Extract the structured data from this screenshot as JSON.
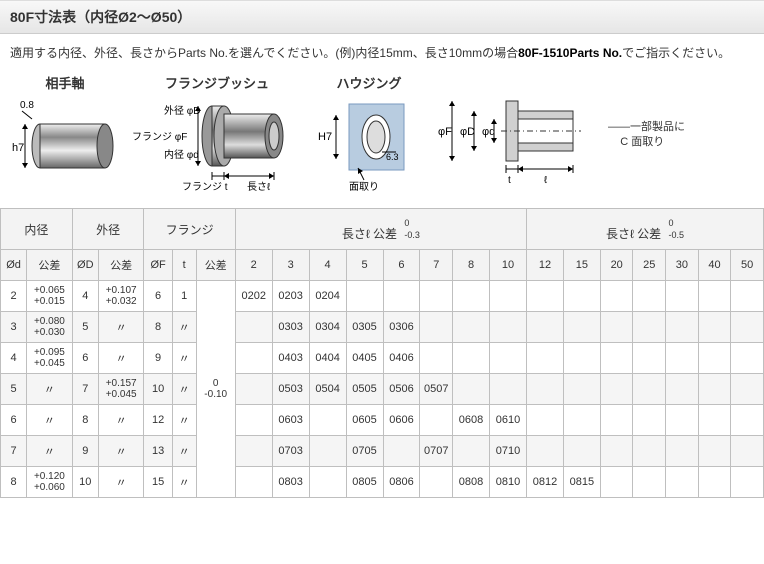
{
  "title": "80F寸法表（内径Ø2～Ø50）",
  "instruction_prefix": "適用する内径、外径、長さからParts No.を選んでください。(例)内径15mm、長さ10mmの場合",
  "instruction_bold": "80F-1510Parts No.",
  "instruction_suffix": "でご指示ください。",
  "diagram_labels": {
    "shaft": "相手軸",
    "bush": "フランジブッシュ",
    "housing": "ハウジング"
  },
  "diagram_annot": {
    "shaft_top": "0.8",
    "shaft_left": "h7",
    "bush_flangeF": "フランジ φF",
    "bush_outD": "外径 φD",
    "bush_inD": "内径 φd",
    "bush_flanget": "フランジ t",
    "bush_len": "長さℓ",
    "housing_H7": "H7",
    "housing_63": "6.3",
    "housing_chamfer": "面取り",
    "right_phiF": "φF",
    "right_phiD": "φD",
    "right_phid": "φd",
    "right_t": "t",
    "right_l": "ℓ"
  },
  "side_note_line1": "一部製品に",
  "side_note_line2": "C 面取り",
  "headers": {
    "naikei": "内径",
    "gaikei": "外径",
    "flange": "フランジ",
    "len1": "長さℓ 公差",
    "len1_tol_top": "0",
    "len1_tol_bot": "-0.3",
    "len2": "長さℓ 公差",
    "len2_tol_top": "0",
    "len2_tol_bot": "-0.5",
    "phid": "Ød",
    "phiD": "ØD",
    "phiF": "ØF",
    "kousa": "公差",
    "t": "t"
  },
  "len_cols1": [
    "2",
    "3",
    "4",
    "5",
    "6",
    "7",
    "8",
    "10"
  ],
  "len_cols2": [
    "12",
    "15",
    "20",
    "25",
    "30",
    "40",
    "50"
  ],
  "flange_tol_top": "0",
  "flange_tol_bot": "-0.10",
  "rows": [
    {
      "phid": "2",
      "tol_d": "+0.065\n+0.015",
      "phiD": "4",
      "tol_D": "+0.107\n+0.032",
      "phiF": "6",
      "t": "1",
      "cells1": [
        "0202",
        "0203",
        "0204",
        "",
        "",
        "",
        "",
        ""
      ],
      "cells2": [
        "",
        "",
        "",
        "",
        "",
        "",
        ""
      ]
    },
    {
      "phid": "3",
      "tol_d": "+0.080\n+0.030",
      "phiD": "5",
      "tol_D": "〃",
      "phiF": "8",
      "t": "〃",
      "cells1": [
        "",
        "0303",
        "0304",
        "0305",
        "0306",
        "",
        "",
        ""
      ],
      "cells2": [
        "",
        "",
        "",
        "",
        "",
        "",
        ""
      ]
    },
    {
      "phid": "4",
      "tol_d": "+0.095\n+0.045",
      "phiD": "6",
      "tol_D": "〃",
      "phiF": "9",
      "t": "〃",
      "cells1": [
        "",
        "0403",
        "0404",
        "0405",
        "0406",
        "",
        "",
        ""
      ],
      "cells2": [
        "",
        "",
        "",
        "",
        "",
        "",
        ""
      ]
    },
    {
      "phid": "5",
      "tol_d": "〃",
      "phiD": "7",
      "tol_D": "+0.157\n+0.045",
      "phiF": "10",
      "t": "〃",
      "cells1": [
        "",
        "0503",
        "0504",
        "0505",
        "0506",
        "0507",
        "",
        ""
      ],
      "cells2": [
        "",
        "",
        "",
        "",
        "",
        "",
        ""
      ]
    },
    {
      "phid": "6",
      "tol_d": "〃",
      "phiD": "8",
      "tol_D": "〃",
      "phiF": "12",
      "t": "〃",
      "cells1": [
        "",
        "0603",
        "",
        "0605",
        "0606",
        "",
        "0608",
        "0610"
      ],
      "cells2": [
        "",
        "",
        "",
        "",
        "",
        "",
        ""
      ]
    },
    {
      "phid": "7",
      "tol_d": "〃",
      "phiD": "9",
      "tol_D": "〃",
      "phiF": "13",
      "t": "〃",
      "cells1": [
        "",
        "0703",
        "",
        "0705",
        "",
        "0707",
        "",
        "0710"
      ],
      "cells2": [
        "",
        "",
        "",
        "",
        "",
        "",
        ""
      ]
    },
    {
      "phid": "8",
      "tol_d": "+0.120\n+0.060",
      "phiD": "10",
      "tol_D": "〃",
      "phiF": "15",
      "t": "〃",
      "cells1": [
        "",
        "0803",
        "",
        "0805",
        "0806",
        "",
        "0808",
        "0810"
      ],
      "cells2": [
        "0812",
        "0815",
        "",
        "",
        "",
        "",
        ""
      ]
    }
  ]
}
